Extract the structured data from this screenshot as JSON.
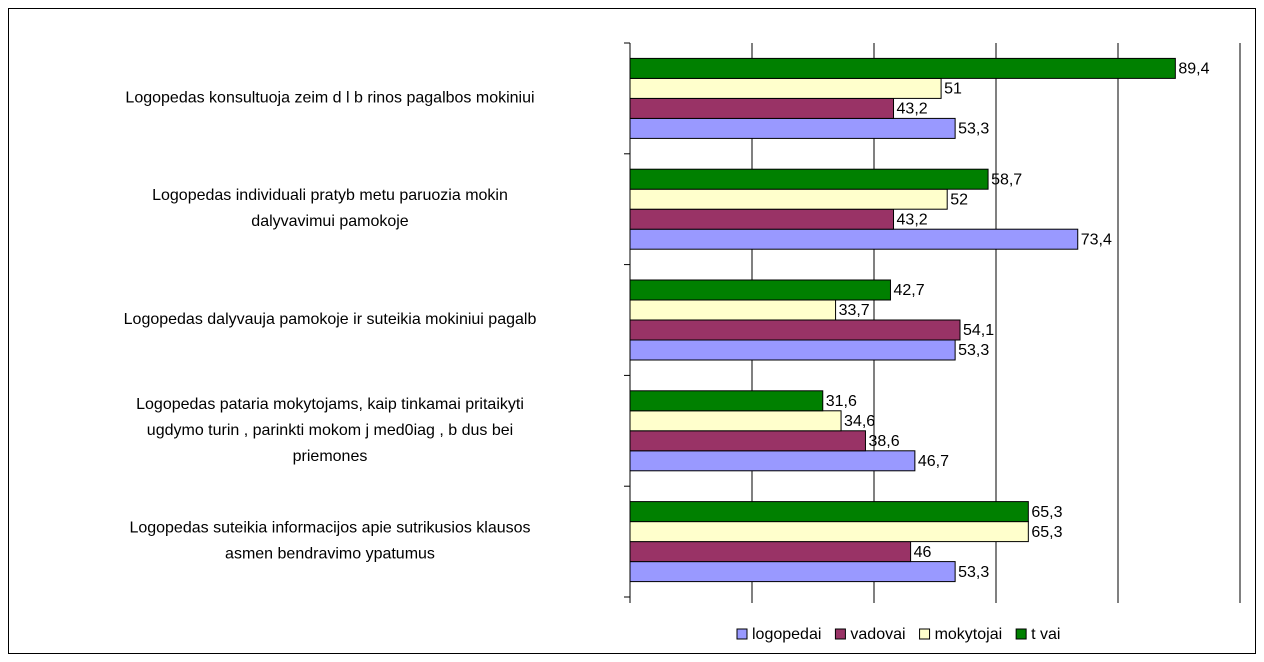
{
  "chart_data": {
    "type": "hbar",
    "categories": [
      "Logopedas konsultuoja zeim   d  l b   rinos pagalbos mokiniui",
      "Logopedas individuali   pratyb   metu paruozia mokin\ndalyvavimui pamokoje",
      "Logopedas dalyvauja pamokoje ir suteikia mokiniui pagalb",
      "Logopedas pataria mokytojams, kaip tinkamai pritaikyti\nugdymo turin , parinkti mokom  j   med0iag  , b  dus bei\npriemones",
      "Logopedas suteikia informacijos apie sutrikusios klausos\nasmen   bendravimo ypatumus"
    ],
    "series": [
      {
        "name": "logopedai",
        "color": "#9999ff",
        "values": [
          53.3,
          73.4,
          53.3,
          46.7,
          53.3
        ],
        "value_labels": [
          "53,3",
          "73,4",
          "53,3",
          "46,7",
          "53,3"
        ]
      },
      {
        "name": "vadovai",
        "color": "#993366",
        "values": [
          43.2,
          43.2,
          54.1,
          38.6,
          46
        ],
        "value_labels": [
          "43,2",
          "43,2",
          "54,1",
          "38,6",
          "46"
        ]
      },
      {
        "name": "mokytojai",
        "color": "#ffffcc",
        "values": [
          51,
          52,
          33.7,
          34.6,
          65.3
        ],
        "value_labels": [
          "51",
          "52",
          "33,7",
          "34,6",
          "65,3"
        ]
      },
      {
        "name": "t vai",
        "color": "#008000",
        "values": [
          89.4,
          58.7,
          42.7,
          31.6,
          65.3
        ],
        "value_labels": [
          "89,4",
          "58,7",
          "42,7",
          "31,6",
          "65,3"
        ]
      }
    ],
    "xlim": [
      0,
      100
    ],
    "xticks": [
      0,
      20,
      40,
      60,
      80,
      100
    ],
    "grid": true,
    "legend": "bottom"
  }
}
